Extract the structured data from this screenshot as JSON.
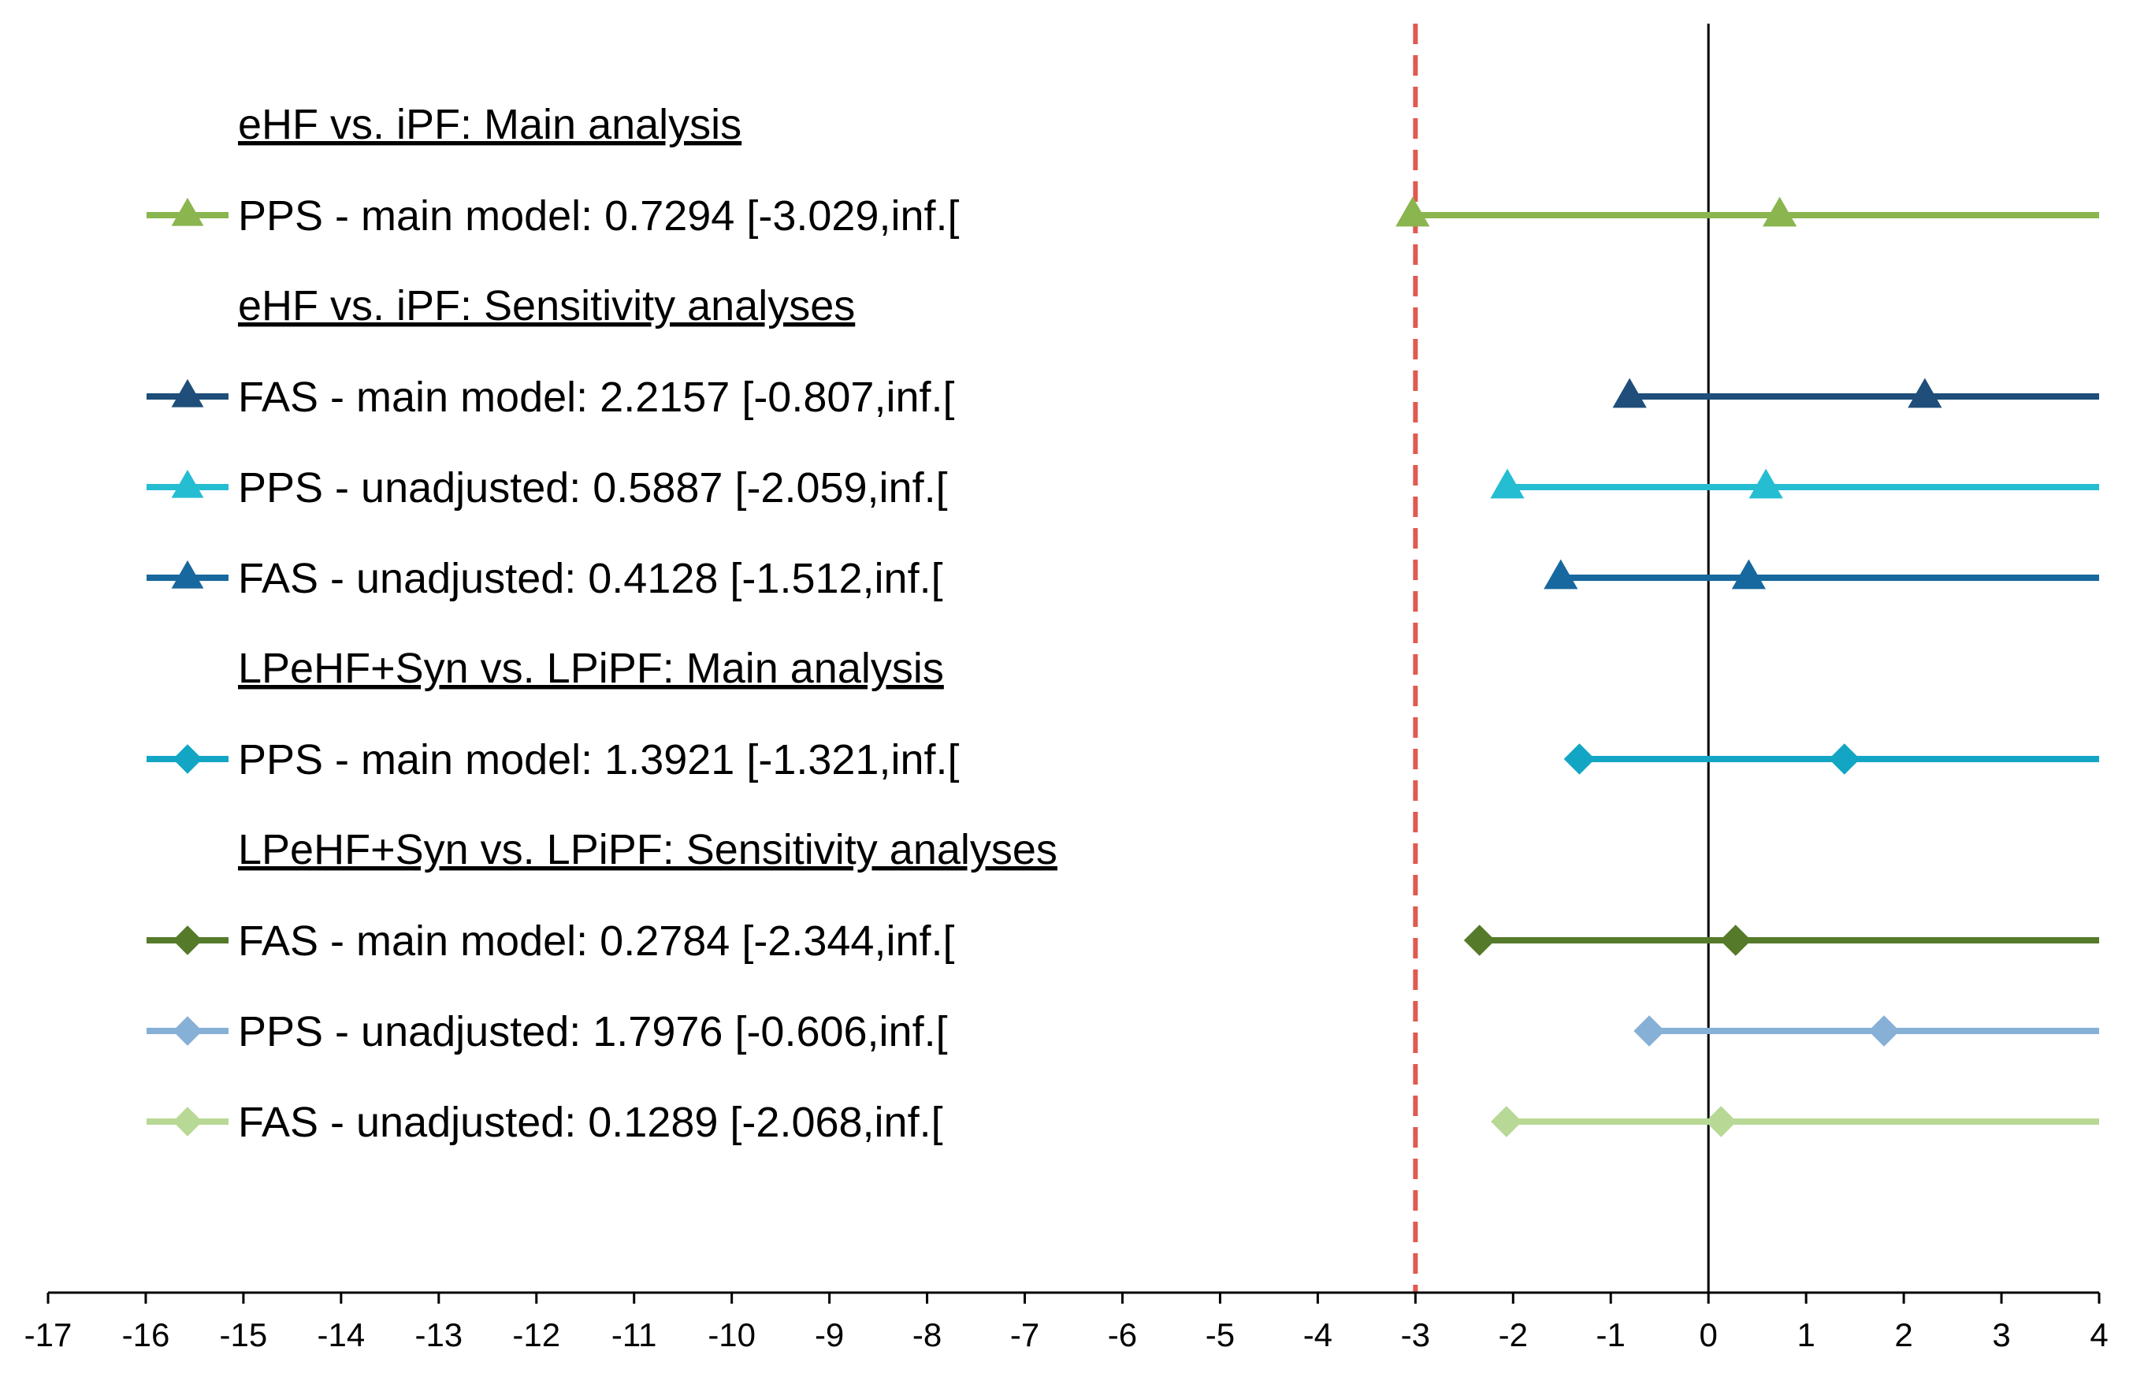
{
  "chart_data": {
    "type": "forest",
    "title": "",
    "xlabel": "",
    "ylabel": "",
    "xlim": [
      -17,
      4
    ],
    "x_ticks": [
      -17,
      -16,
      -15,
      -14,
      -13,
      -12,
      -11,
      -10,
      -9,
      -8,
      -7,
      -6,
      -5,
      -4,
      -3,
      -2,
      -1,
      0,
      1,
      2,
      3,
      4
    ],
    "grid": false,
    "reference_lines": [
      {
        "name": "margin",
        "x": -3,
        "style": "dashed",
        "color": "#e05a4f"
      },
      {
        "name": "zero",
        "x": 0,
        "style": "solid",
        "color": "#000000"
      }
    ],
    "rows": [
      {
        "kind": "heading",
        "text": "eHF vs. iPF: Main analysis"
      },
      {
        "kind": "series",
        "label": "PPS - main model: 0.7294 [-3.029,inf.[",
        "estimate": 0.7294,
        "lower": -3.029,
        "upper": "inf",
        "marker": "triangle",
        "color": "#8ab54f"
      },
      {
        "kind": "heading",
        "text": "eHF vs. iPF:  Sensitivity analyses"
      },
      {
        "kind": "series",
        "label": "FAS - main model: 2.2157 [-0.807,inf.[",
        "estimate": 2.2157,
        "lower": -0.807,
        "upper": "inf",
        "marker": "triangle",
        "color": "#1e4e79"
      },
      {
        "kind": "series",
        "label": "PPS - unadjusted: 0.5887 [-2.059,inf.[",
        "estimate": 0.5887,
        "lower": -2.059,
        "upper": "inf",
        "marker": "triangle",
        "color": "#25bdd2"
      },
      {
        "kind": "series",
        "label": "FAS - unadjusted: 0.4128 [-1.512,inf.[",
        "estimate": 0.4128,
        "lower": -1.512,
        "upper": "inf",
        "marker": "triangle",
        "color": "#17689e"
      },
      {
        "kind": "heading",
        "text": "LPeHF+Syn  vs. LPiPF: Main analysis"
      },
      {
        "kind": "series",
        "label": "PPS - main model: 1.3921 [-1.321,inf.[",
        "estimate": 1.3921,
        "lower": -1.321,
        "upper": "inf",
        "marker": "diamond",
        "color": "#13a6c4"
      },
      {
        "kind": "heading",
        "text": "LPeHF+Syn  vs. LPiPF: Sensitivity analyses"
      },
      {
        "kind": "series",
        "label": "FAS - main model: 0.2784 [-2.344,inf.[",
        "estimate": 0.2784,
        "lower": -2.344,
        "upper": "inf",
        "marker": "diamond",
        "color": "#557a2a"
      },
      {
        "kind": "series",
        "label": "PPS - unadjusted: 1.7976 [-0.606,inf.[",
        "estimate": 1.7976,
        "lower": -0.606,
        "upper": "inf",
        "marker": "diamond",
        "color": "#86b0d6"
      },
      {
        "kind": "series",
        "label": "FAS - unadjusted: 0.1289  [-2.068,inf.[",
        "estimate": 0.1289,
        "lower": -2.068,
        "upper": "inf",
        "marker": "diamond",
        "color": "#b8d896"
      }
    ]
  }
}
